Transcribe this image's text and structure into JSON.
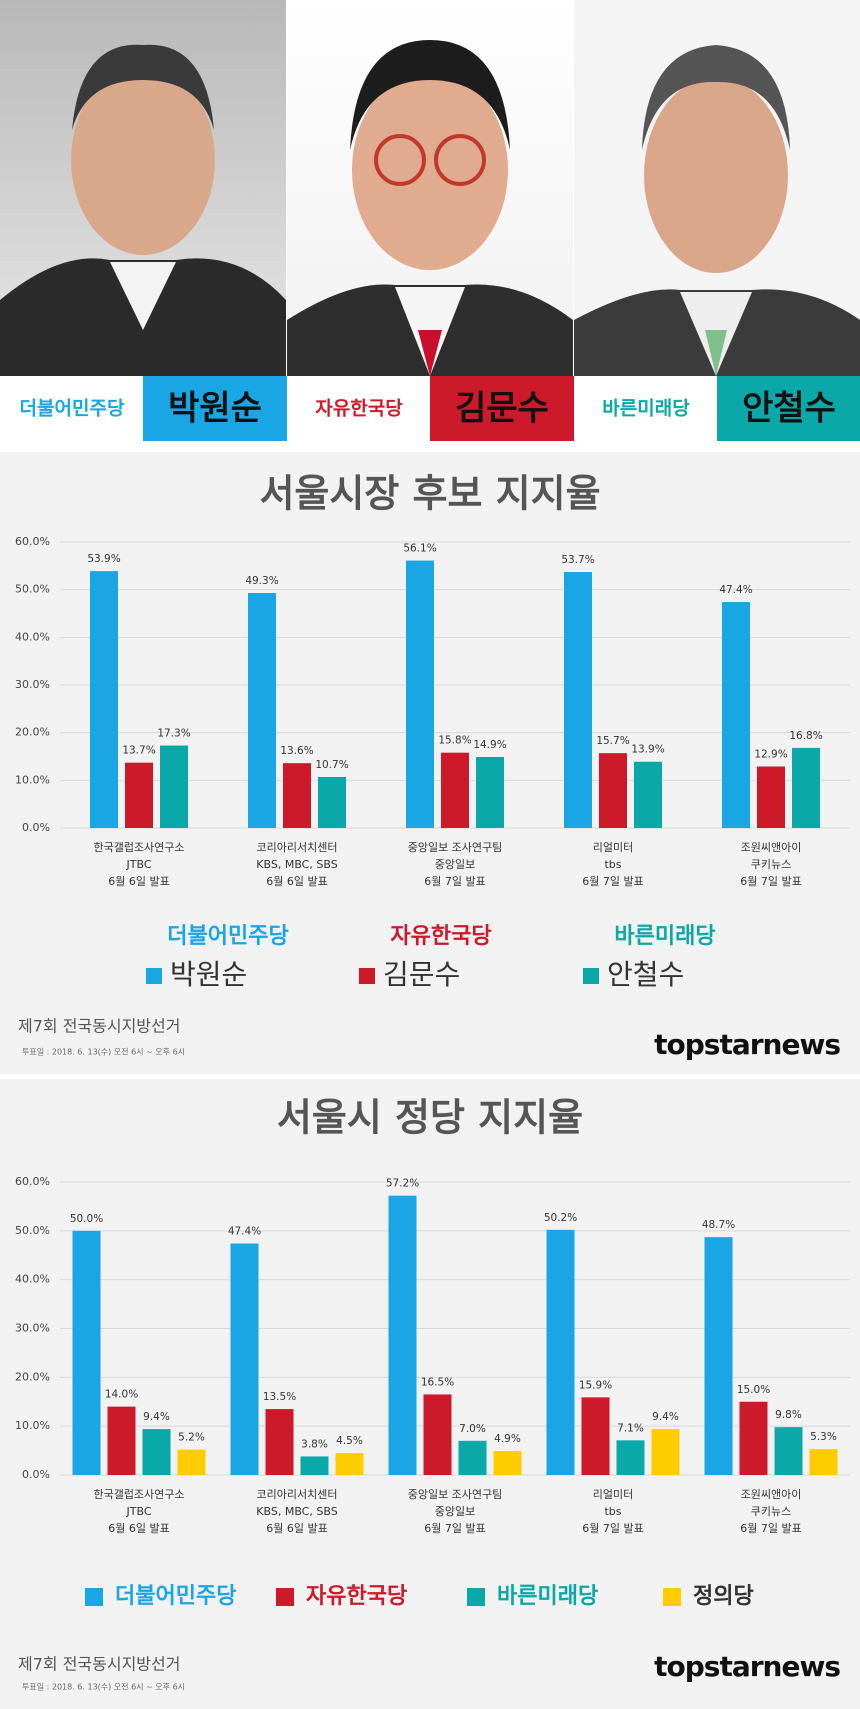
{
  "header": {
    "candidates": [
      {
        "party": "더불어민주당",
        "name": "박원순",
        "color": "#1aa6e4"
      },
      {
        "party": "자유한국당",
        "name": "김문수",
        "color": "#cc1a2b"
      },
      {
        "party": "바른미래당",
        "name": "안철수",
        "color": "#0aa8a8"
      }
    ]
  },
  "chart_data": [
    {
      "type": "bar",
      "title": "서울시장 후보 지지율",
      "categories": [
        [
          "한국갤럽조사연구소",
          "JTBC",
          "6월 6일 발표"
        ],
        [
          "코리아리서치센터",
          "KBS, MBC, SBS",
          "6월 6일 발표"
        ],
        [
          "중앙일보 조사연구팀",
          "중앙일보",
          "6월 7일 발표"
        ],
        [
          "리얼미터",
          "tbs",
          "6월 7일 발표"
        ],
        [
          "조원씨앤아이",
          "쿠키뉴스",
          "6월 7일 발표"
        ]
      ],
      "series": [
        {
          "name": "박원순",
          "party": "더불어민주당",
          "color": "#1aa6e4",
          "values": [
            53.9,
            49.3,
            56.1,
            53.7,
            47.4
          ],
          "value_labels": [
            "53.9%",
            "49.3%",
            "56.1%",
            "53.7%",
            "47.4%"
          ]
        },
        {
          "name": "김문수",
          "party": "자유한국당",
          "color": "#cc1a2b",
          "values": [
            13.7,
            13.6,
            15.8,
            15.7,
            12.9
          ],
          "value_labels": [
            "13.7%",
            "13.6%",
            "15.8%",
            "15.7%",
            "12.9%"
          ]
        },
        {
          "name": "안철수",
          "party": "바른미래당",
          "color": "#0aa8a8",
          "values": [
            17.3,
            10.7,
            14.9,
            13.9,
            16.8
          ],
          "value_labels": [
            "17.3%",
            "10.7%",
            "14.9%",
            "13.9%",
            "16.8%"
          ]
        }
      ],
      "ylim": [
        0,
        60
      ],
      "yticks": [
        {
          "value": 0,
          "label": "0.0%"
        },
        {
          "value": 10,
          "label": "10.0%"
        },
        {
          "value": 20,
          "label": "20.0%"
        },
        {
          "value": 30,
          "label": "30.0%"
        },
        {
          "value": 40,
          "label": "40.0%"
        },
        {
          "value": 50,
          "label": "50.0%"
        },
        {
          "value": 60,
          "label": "60.0%"
        }
      ],
      "grid": true,
      "footer": {
        "election": "제7회 전국동시지방선거",
        "date": "투표일 : 2018. 6. 13(수) 오전 6시 ~ 오후 6시",
        "brand": "topstarnews"
      }
    },
    {
      "type": "bar",
      "title": "서울시 정당 지지율",
      "categories": [
        [
          "한국갤럽조사연구소",
          "JTBC",
          "6월 6일 발표"
        ],
        [
          "코리아리서치센터",
          "KBS, MBC, SBS",
          "6월 6일 발표"
        ],
        [
          "중앙일보 조사연구팀",
          "중앙일보",
          "6월 7일 발표"
        ],
        [
          "리얼미터",
          "tbs",
          "6월 7일 발표"
        ],
        [
          "조원씨앤아이",
          "쿠키뉴스",
          "6월 7일 발표"
        ]
      ],
      "series": [
        {
          "name": "더불어민주당",
          "color": "#1aa6e4",
          "values": [
            50.0,
            47.4,
            57.2,
            50.2,
            48.7
          ],
          "value_labels": [
            "50.0%",
            "47.4%",
            "57.2%",
            "50.2%",
            "48.7%"
          ]
        },
        {
          "name": "자유한국당",
          "color": "#cc1a2b",
          "values": [
            14.0,
            13.5,
            16.5,
            15.9,
            15.0
          ],
          "value_labels": [
            "14.0%",
            "13.5%",
            "16.5%",
            "15.9%",
            "15.0%"
          ]
        },
        {
          "name": "바른미래당",
          "color": "#0aa8a8",
          "values": [
            9.4,
            3.8,
            7.0,
            7.1,
            9.8
          ],
          "value_labels": [
            "9.4%",
            "3.8%",
            "7.0%",
            "7.1%",
            "9.8%"
          ]
        },
        {
          "name": "정의당",
          "color": "#ffcc00",
          "values": [
            5.2,
            4.5,
            4.9,
            9.4,
            5.3
          ],
          "value_labels": [
            "5.2%",
            "4.5%",
            "4.9%",
            "9.4%",
            "5.3%"
          ]
        }
      ],
      "ylim": [
        0,
        60
      ],
      "yticks": [
        {
          "value": 0,
          "label": "0.0%"
        },
        {
          "value": 10,
          "label": "10.0%"
        },
        {
          "value": 20,
          "label": "20.0%"
        },
        {
          "value": 30,
          "label": "30.0%"
        },
        {
          "value": 40,
          "label": "40.0%"
        },
        {
          "value": 50,
          "label": "50.0%"
        },
        {
          "value": 60,
          "label": "60.0%"
        }
      ],
      "grid": true,
      "footer": {
        "election": "제7회 전국동시지방선거",
        "date": "투표일 : 2018. 6. 13(수) 오전 6시 ~ 오후 6시",
        "brand": "topstarnews"
      }
    }
  ]
}
